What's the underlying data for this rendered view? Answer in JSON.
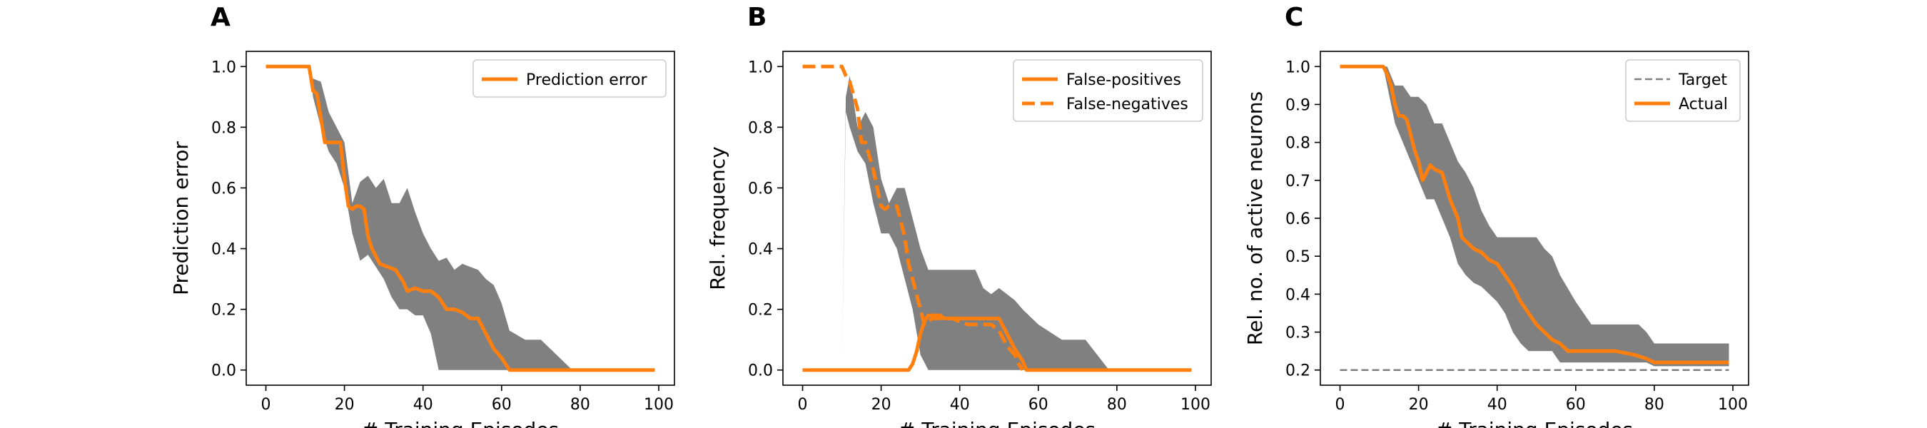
{
  "figure": {
    "panels": [
      "A",
      "B",
      "C"
    ]
  },
  "colors": {
    "series": "#ff7f0e",
    "band": "#808080",
    "target": "#808080",
    "axes": "#000000"
  },
  "chart_data": [
    {
      "panel": "A",
      "type": "line",
      "xlabel": "# Training Episodes",
      "ylabel": "Prediction error",
      "xlim": [
        -5,
        104
      ],
      "ylim": [
        -0.05,
        1.05
      ],
      "xticks": [
        0,
        20,
        40,
        60,
        80,
        100
      ],
      "yticks": [
        0.0,
        0.2,
        0.4,
        0.6,
        0.8,
        1.0
      ],
      "ytick_labels": [
        "0.0",
        "0.2",
        "0.4",
        "0.6",
        "0.8",
        "1.0"
      ],
      "legend": "top-right",
      "series": [
        {
          "name": "Prediction error",
          "style": "solid",
          "x": [
            0,
            11,
            12,
            13,
            15,
            17,
            19,
            20,
            21,
            22,
            23,
            24,
            25,
            26,
            27,
            29,
            31,
            33,
            35,
            36,
            38,
            40,
            42,
            44,
            46,
            48,
            50,
            52,
            54,
            56,
            58,
            60,
            62,
            64,
            70,
            80,
            99
          ],
          "y": [
            1.0,
            1.0,
            0.92,
            0.91,
            0.75,
            0.75,
            0.75,
            0.63,
            0.54,
            0.53,
            0.54,
            0.54,
            0.53,
            0.44,
            0.4,
            0.35,
            0.34,
            0.33,
            0.29,
            0.26,
            0.27,
            0.26,
            0.26,
            0.24,
            0.2,
            0.2,
            0.19,
            0.17,
            0.17,
            0.12,
            0.07,
            0.04,
            0.0,
            0.0,
            0.0,
            0.0,
            0.0
          ]
        }
      ],
      "band": {
        "x": [
          0,
          11,
          12,
          14,
          16,
          18,
          20,
          22,
          24,
          26,
          28,
          30,
          32,
          34,
          36,
          38,
          40,
          42,
          44,
          46,
          48,
          50,
          52,
          54,
          56,
          58,
          60,
          62,
          66,
          70,
          74,
          78,
          99
        ],
        "upper": [
          1.0,
          1.0,
          0.96,
          0.95,
          0.85,
          0.8,
          0.75,
          0.55,
          0.62,
          0.64,
          0.6,
          0.63,
          0.55,
          0.55,
          0.6,
          0.52,
          0.45,
          0.4,
          0.36,
          0.37,
          0.33,
          0.35,
          0.34,
          0.33,
          0.3,
          0.28,
          0.22,
          0.13,
          0.1,
          0.1,
          0.05,
          0.0,
          0.0
        ],
        "lower": [
          1.0,
          1.0,
          0.9,
          0.8,
          0.72,
          0.68,
          0.6,
          0.45,
          0.36,
          0.38,
          0.34,
          0.3,
          0.24,
          0.2,
          0.2,
          0.18,
          0.18,
          0.12,
          0.0,
          0.0,
          0.0,
          0.0,
          0.0,
          0.0,
          0.0,
          0.0,
          0.0,
          0.0,
          0.0,
          0.0,
          0.0,
          0.0,
          0.0
        ]
      }
    },
    {
      "panel": "B",
      "type": "line",
      "xlabel": "# Training Episodes",
      "ylabel": "Rel. frequency",
      "xlim": [
        -5,
        104
      ],
      "ylim": [
        -0.05,
        1.05
      ],
      "xticks": [
        0,
        20,
        40,
        60,
        80,
        100
      ],
      "yticks": [
        0.0,
        0.2,
        0.4,
        0.6,
        0.8,
        1.0
      ],
      "ytick_labels": [
        "0.0",
        "0.2",
        "0.4",
        "0.6",
        "0.8",
        "1.0"
      ],
      "legend": "top-right",
      "series": [
        {
          "name": "False-positives",
          "style": "solid",
          "x": [
            0,
            27,
            28,
            29,
            30,
            31,
            32,
            33,
            34,
            35,
            36,
            38,
            40,
            42,
            44,
            46,
            48,
            50,
            52,
            54,
            56,
            57,
            58,
            60,
            70,
            80,
            99
          ],
          "y": [
            0.0,
            0.0,
            0.02,
            0.06,
            0.12,
            0.16,
            0.18,
            0.18,
            0.18,
            0.18,
            0.17,
            0.17,
            0.17,
            0.17,
            0.17,
            0.17,
            0.17,
            0.17,
            0.12,
            0.07,
            0.03,
            0.0,
            0.0,
            0.0,
            0.0,
            0.0,
            0.0
          ]
        },
        {
          "name": "False-negatives",
          "style": "dashed",
          "x": [
            0,
            10,
            11,
            12,
            14,
            15,
            16,
            18,
            20,
            21,
            22,
            24,
            26,
            27,
            28,
            29,
            30,
            31,
            32,
            33,
            35,
            38,
            40,
            42,
            44,
            46,
            48,
            50,
            52,
            54,
            55,
            56
          ],
          "y": [
            1.0,
            1.0,
            0.97,
            0.95,
            0.86,
            0.75,
            0.75,
            0.66,
            0.54,
            0.53,
            0.54,
            0.54,
            0.44,
            0.35,
            0.3,
            0.25,
            0.2,
            0.15,
            0.16,
            0.17,
            0.17,
            0.17,
            0.16,
            0.15,
            0.15,
            0.15,
            0.15,
            0.13,
            0.08,
            0.05,
            0.02,
            0.0
          ]
        }
      ],
      "band": {
        "x": [
          0,
          10,
          11,
          12,
          14,
          16,
          18,
          20,
          22,
          24,
          26,
          28,
          30,
          32,
          34,
          36,
          38,
          40,
          44,
          46,
          48,
          50,
          52,
          54,
          56,
          60,
          66,
          72,
          78,
          99
        ],
        "upper": [
          0.0,
          0.0,
          0.9,
          0.97,
          0.8,
          0.85,
          0.8,
          0.63,
          0.55,
          0.6,
          0.6,
          0.5,
          0.4,
          0.33,
          0.33,
          0.33,
          0.33,
          0.33,
          0.33,
          0.27,
          0.25,
          0.27,
          0.25,
          0.23,
          0.2,
          0.15,
          0.1,
          0.1,
          0.0,
          0.0
        ],
        "lower": [
          0.0,
          0.0,
          0.85,
          0.8,
          0.72,
          0.68,
          0.55,
          0.45,
          0.45,
          0.4,
          0.3,
          0.2,
          0.05,
          0.0,
          0.0,
          0.0,
          0.0,
          0.0,
          0.0,
          0.0,
          0.0,
          0.0,
          0.0,
          0.0,
          0.0,
          0.0,
          0.0,
          0.0,
          0.0,
          0.0
        ]
      }
    },
    {
      "panel": "C",
      "type": "line",
      "xlabel": "# Training Episodes",
      "ylabel": "Rel. no. of active neurons",
      "xlim": [
        -5,
        104
      ],
      "ylim": [
        0.16,
        1.04
      ],
      "xticks": [
        0,
        20,
        40,
        60,
        80,
        100
      ],
      "yticks": [
        0.2,
        0.3,
        0.4,
        0.5,
        0.6,
        0.7,
        0.8,
        0.9,
        1.0
      ],
      "ytick_labels": [
        "0.2",
        "0.3",
        "0.4",
        "0.5",
        "0.6",
        "0.7",
        "0.8",
        "0.9",
        "1.0"
      ],
      "legend": "top-right",
      "series": [
        {
          "name": "Target",
          "style": "dashed-gray",
          "x": [
            0,
            99
          ],
          "y": [
            0.2,
            0.2
          ]
        },
        {
          "name": "Actual",
          "style": "solid",
          "x": [
            0,
            11,
            12,
            13,
            14,
            15,
            16,
            17,
            18,
            19,
            20,
            21,
            22,
            23,
            24,
            26,
            28,
            30,
            31,
            32,
            34,
            36,
            38,
            40,
            42,
            44,
            46,
            48,
            50,
            52,
            54,
            56,
            58,
            60,
            64,
            70,
            75,
            78,
            80,
            85,
            90,
            99
          ],
          "y": [
            1.0,
            1.0,
            0.98,
            0.95,
            0.9,
            0.87,
            0.87,
            0.86,
            0.82,
            0.78,
            0.75,
            0.7,
            0.72,
            0.74,
            0.73,
            0.72,
            0.65,
            0.6,
            0.55,
            0.54,
            0.52,
            0.51,
            0.49,
            0.48,
            0.45,
            0.42,
            0.38,
            0.35,
            0.32,
            0.3,
            0.28,
            0.27,
            0.25,
            0.25,
            0.25,
            0.25,
            0.24,
            0.23,
            0.22,
            0.22,
            0.22,
            0.22
          ]
        }
      ],
      "band": {
        "x": [
          0,
          11,
          12,
          14,
          16,
          18,
          20,
          22,
          24,
          26,
          28,
          30,
          32,
          34,
          36,
          38,
          40,
          42,
          44,
          46,
          48,
          50,
          52,
          54,
          56,
          60,
          64,
          68,
          72,
          76,
          78,
          80,
          99
        ],
        "upper": [
          1.0,
          1.0,
          1.0,
          0.95,
          0.95,
          0.92,
          0.92,
          0.9,
          0.85,
          0.85,
          0.8,
          0.75,
          0.72,
          0.68,
          0.62,
          0.58,
          0.55,
          0.55,
          0.55,
          0.55,
          0.55,
          0.55,
          0.52,
          0.5,
          0.45,
          0.38,
          0.32,
          0.32,
          0.32,
          0.32,
          0.3,
          0.27,
          0.27
        ],
        "lower": [
          1.0,
          1.0,
          0.95,
          0.85,
          0.8,
          0.75,
          0.7,
          0.65,
          0.65,
          0.6,
          0.55,
          0.48,
          0.45,
          0.43,
          0.42,
          0.4,
          0.38,
          0.35,
          0.3,
          0.27,
          0.25,
          0.25,
          0.25,
          0.25,
          0.22,
          0.22,
          0.22,
          0.22,
          0.22,
          0.22,
          0.22,
          0.21,
          0.21
        ]
      }
    }
  ]
}
